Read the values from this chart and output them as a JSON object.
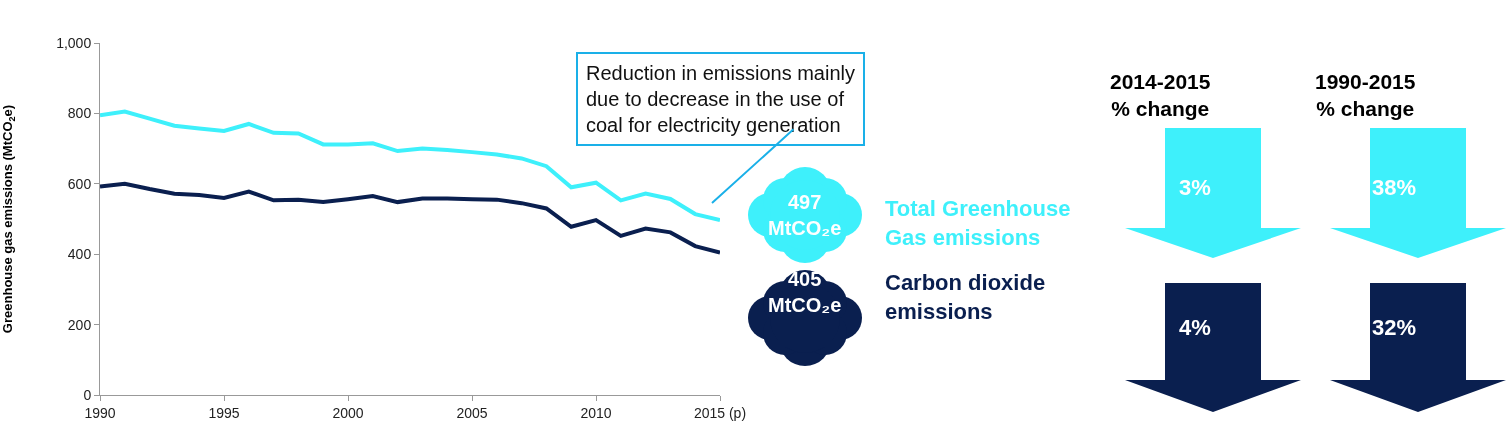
{
  "chart_data": {
    "type": "line",
    "ylabel": "Greenhouse gas emissions (MtCO$_{2}$e)",
    "x": [
      1990,
      1991,
      1992,
      1993,
      1994,
      1995,
      1996,
      1997,
      1998,
      1999,
      2000,
      2001,
      2002,
      2003,
      2004,
      2005,
      2006,
      2007,
      2008,
      2009,
      2010,
      2011,
      2012,
      2013,
      2014,
      2015
    ],
    "series": [
      {
        "name": "Total Greenhouse\nGas emissions",
        "color": "#3ef0fb",
        "values": [
          795,
          805,
          785,
          765,
          757,
          750,
          770,
          745,
          743,
          712,
          712,
          715,
          693,
          700,
          696,
          690,
          683,
          672,
          650,
          590,
          603,
          553,
          572,
          557,
          514,
          497
        ]
      },
      {
        "name": "Carbon dioxide\nemissions",
        "color": "#0a1f4f",
        "values": [
          592,
          600,
          585,
          572,
          568,
          560,
          578,
          553,
          555,
          548,
          556,
          565,
          548,
          558,
          558,
          556,
          555,
          545,
          530,
          478,
          497,
          452,
          473,
          462,
          423,
          405
        ]
      }
    ],
    "xlim": [
      1990,
      2015
    ],
    "xticks": [
      1990,
      1995,
      2000,
      2005,
      2010,
      {
        "value": 2015,
        "label": "2015 (p)"
      }
    ],
    "ylim": [
      0,
      1000
    ],
    "yticks": [
      0,
      200,
      400,
      600,
      800,
      {
        "value": 1000,
        "label": "1,000"
      }
    ],
    "legend": "right",
    "line_style": "solid",
    "marker": "none",
    "annotations": [
      "Reduction in emissions mainly\ndue to decrease in the use of\ncoal for electricity generation",
      "497\nMtCO₂e",
      "405\nMtCO₂e",
      "2014-2015\n% change",
      "1990-2015\n% change",
      "3%",
      "38%",
      "4%",
      "32%"
    ]
  }
}
